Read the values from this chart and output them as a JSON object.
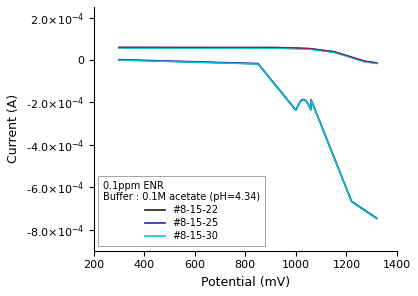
{
  "title": "",
  "xlabel": "Potential (mV)",
  "ylabel": "Current (A)",
  "xlim": [
    200,
    1400
  ],
  "ylim": [
    -0.0009,
    0.00025
  ],
  "yticks": [
    0.0002,
    0,
    -0.0002,
    -0.0004,
    -0.0006,
    -0.0008
  ],
  "xticks": [
    200,
    400,
    600,
    800,
    1000,
    1200,
    1400
  ],
  "legend_title1": "0.1ppm ENR",
  "legend_title2": "Buffer : 0.1M acetate (pH=4.34)",
  "legend_labels": [
    "#8-15-22",
    "#8-15-25",
    "#8-15-30"
  ],
  "colors": [
    "#222222",
    "#2020cc",
    "#00cccc"
  ],
  "red_color": "#cc0000",
  "background": "#ffffff"
}
